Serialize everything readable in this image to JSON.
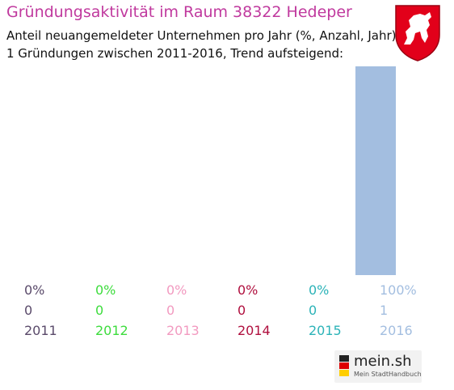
{
  "header": {
    "title": "Gründungsaktivität im Raum 38322 Hedeper",
    "subtitle_line1": "Anteil neuangemeldeter Unternehmen pro Jahr (%, Anzahl, Jahr)",
    "subtitle_line2": "1 Gründungen zwischen 2011-2016, Trend aufsteigend:"
  },
  "crest": {
    "icon": "horse-crest-icon",
    "color": "#e2001a"
  },
  "chart_data": {
    "type": "bar",
    "categories": [
      "2011",
      "2012",
      "2013",
      "2014",
      "2015",
      "2016"
    ],
    "counts": [
      0,
      0,
      0,
      0,
      0,
      1
    ],
    "values": [
      0,
      0,
      0,
      0,
      0,
      100
    ],
    "percent_labels": [
      "0%",
      "0%",
      "0%",
      "0%",
      "0%",
      "100%"
    ],
    "count_labels": [
      "0",
      "0",
      "0",
      "0",
      "0",
      "1"
    ],
    "ylim": [
      0,
      100
    ],
    "grid": false,
    "colors": [
      "#5a4a6a",
      "#3ddc3d",
      "#f29ac0",
      "#b0103f",
      "#2cb3b8",
      "#a3bee0"
    ],
    "bar_color": "#a3bee0"
  },
  "footer": {
    "brand": "mein.sh",
    "tagline": "Mein StadtHandbuch",
    "logo_icon": "germany-flag-icon"
  }
}
